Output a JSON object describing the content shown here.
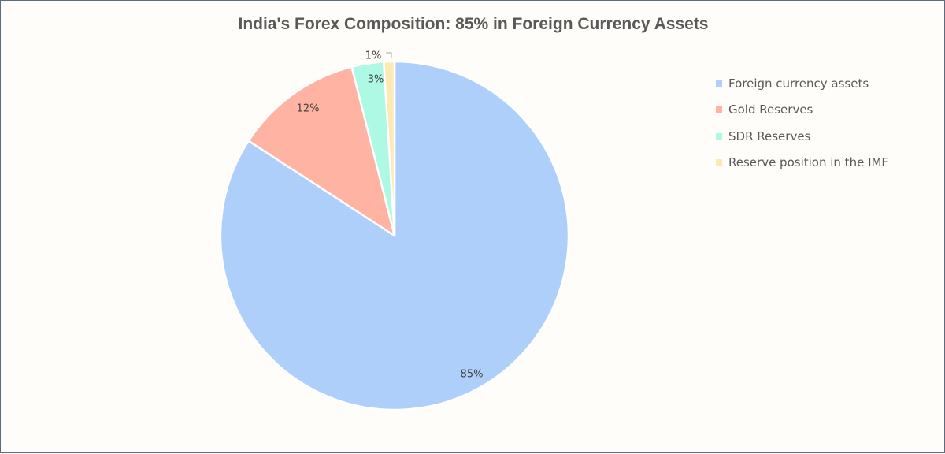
{
  "chart_data": {
    "type": "pie",
    "title": "India's Forex Composition: 85% in Foreign Currency Assets",
    "categories": [
      "Foreign currency assets",
      "Gold Reserves",
      "SDR Reserves",
      "Reserve position in the IMF"
    ],
    "values": [
      85,
      12,
      3,
      1
    ],
    "data_labels": [
      "85%",
      "12%",
      "3%",
      "1%"
    ],
    "colors": [
      "#aecffa",
      "#ffb3a3",
      "#aef9e3",
      "#fde9b3"
    ],
    "legend_position": "right"
  }
}
